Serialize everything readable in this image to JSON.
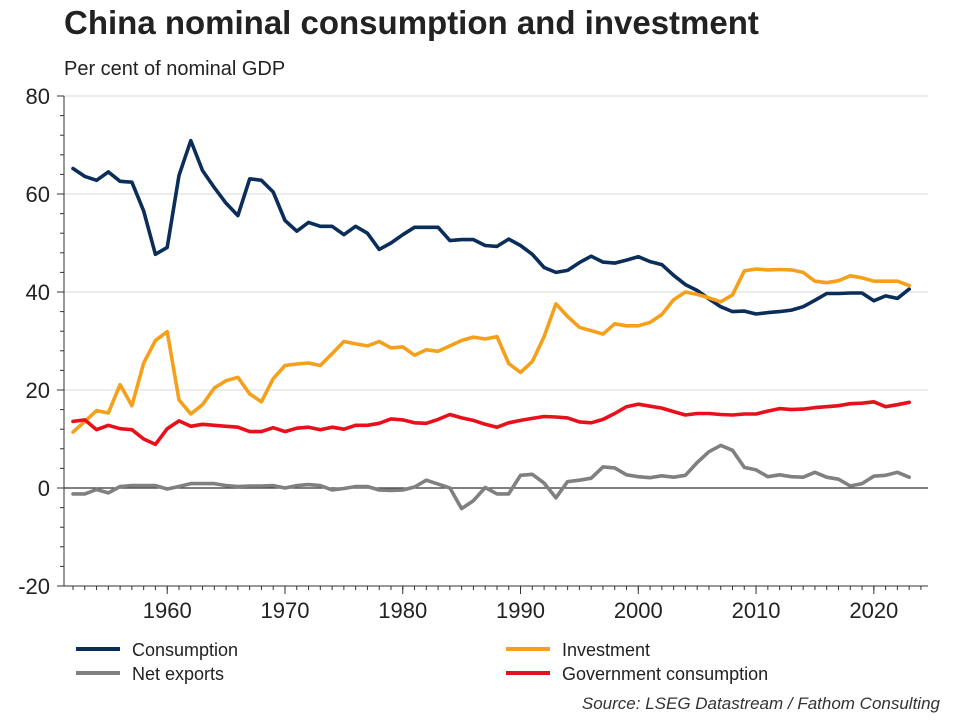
{
  "chart_data": {
    "type": "line",
    "title": "China nominal consumption and investment",
    "subtitle": "Per cent of nominal GDP",
    "ylim": [
      -20,
      80
    ],
    "yticks": [
      -20,
      0,
      20,
      40,
      60,
      80
    ],
    "xlim": [
      1952,
      2024
    ],
    "xticks": [
      1960,
      1970,
      1980,
      1990,
      2000,
      2010,
      2020
    ],
    "grid": "horizontal",
    "legend_placement": "bottom",
    "x": [
      1952,
      1953,
      1954,
      1955,
      1956,
      1957,
      1958,
      1959,
      1960,
      1961,
      1962,
      1963,
      1964,
      1965,
      1966,
      1967,
      1968,
      1969,
      1970,
      1971,
      1972,
      1973,
      1974,
      1975,
      1976,
      1977,
      1978,
      1979,
      1980,
      1981,
      1982,
      1983,
      1984,
      1985,
      1986,
      1987,
      1988,
      1989,
      1990,
      1991,
      1992,
      1993,
      1994,
      1995,
      1996,
      1997,
      1998,
      1999,
      2000,
      2001,
      2002,
      2003,
      2004,
      2005,
      2006,
      2007,
      2008,
      2009,
      2010,
      2011,
      2012,
      2013,
      2014,
      2015,
      2016,
      2017,
      2018,
      2019,
      2020,
      2021,
      2022,
      2023
    ],
    "series": [
      {
        "name": "Consumption",
        "color": "#0b2d5a",
        "values": [
          65.2,
          63.6,
          62.8,
          64.5,
          62.6,
          62.4,
          56.5,
          47.7,
          49.1,
          63.8,
          70.9,
          64.8,
          61.3,
          58.1,
          55.6,
          63.1,
          62.8,
          60.4,
          54.6,
          52.4,
          54.2,
          53.4,
          53.4,
          51.7,
          53.4,
          52.0,
          48.7,
          50.0,
          51.7,
          53.2,
          53.2,
          53.2,
          50.5,
          50.7,
          50.7,
          49.5,
          49.3,
          50.8,
          49.5,
          47.7,
          45.0,
          44.0,
          44.4,
          46.0,
          47.3,
          46.1,
          45.9,
          46.5,
          47.2,
          46.2,
          45.6,
          43.4,
          41.5,
          40.3,
          38.6,
          37.0,
          36.0,
          36.1,
          35.5,
          35.8,
          36.0,
          36.3,
          37.0,
          38.3,
          39.7,
          39.7,
          39.8,
          39.8,
          38.2,
          39.2,
          38.7,
          40.6
        ]
      },
      {
        "name": "Investment",
        "color": "#f5a01a",
        "values": [
          11.4,
          13.6,
          15.8,
          15.3,
          21.1,
          16.8,
          25.5,
          30.1,
          31.9,
          18.0,
          15.1,
          17.0,
          20.4,
          21.9,
          22.6,
          19.2,
          17.6,
          22.3,
          25.0,
          25.3,
          25.5,
          25.0,
          27.4,
          29.9,
          29.4,
          29.0,
          29.9,
          28.6,
          28.8,
          27.1,
          28.2,
          27.9,
          29.0,
          30.1,
          30.8,
          30.4,
          30.9,
          25.4,
          23.6,
          25.8,
          30.9,
          37.6,
          35.0,
          32.8,
          32.1,
          31.4,
          33.5,
          33.1,
          33.1,
          33.8,
          35.4,
          38.4,
          40.0,
          39.5,
          38.8,
          38.0,
          39.4,
          44.3,
          44.7,
          44.5,
          44.6,
          44.5,
          44.0,
          42.2,
          41.9,
          42.3,
          43.3,
          42.9,
          42.2,
          42.2,
          42.2,
          41.3
        ]
      },
      {
        "name": "Net exports",
        "color": "#808080",
        "values": [
          -1.2,
          -1.2,
          -0.3,
          -1.0,
          0.3,
          0.5,
          0.5,
          0.5,
          -0.2,
          0.3,
          0.9,
          0.9,
          0.9,
          0.5,
          0.3,
          0.4,
          0.4,
          0.5,
          0.0,
          0.5,
          0.7,
          0.5,
          -0.4,
          -0.1,
          0.3,
          0.3,
          -0.4,
          -0.5,
          -0.4,
          0.2,
          1.6,
          0.8,
          0.0,
          -4.2,
          -2.6,
          0.1,
          -1.2,
          -1.2,
          2.6,
          2.8,
          1.0,
          -2.0,
          1.3,
          1.6,
          2.0,
          4.3,
          4.1,
          2.7,
          2.3,
          2.1,
          2.5,
          2.2,
          2.6,
          5.2,
          7.4,
          8.7,
          7.7,
          4.2,
          3.7,
          2.3,
          2.7,
          2.3,
          2.2,
          3.2,
          2.2,
          1.8,
          0.4,
          0.9,
          2.4,
          2.6,
          3.2,
          2.2
        ]
      },
      {
        "name": "Government consumption",
        "color": "#e8101a",
        "values": [
          13.6,
          13.9,
          11.9,
          12.8,
          12.1,
          11.9,
          10.0,
          8.9,
          12.1,
          13.7,
          12.6,
          13.0,
          12.8,
          12.6,
          12.4,
          11.5,
          11.5,
          12.3,
          11.5,
          12.2,
          12.4,
          11.9,
          12.4,
          12.0,
          12.8,
          12.8,
          13.2,
          14.1,
          13.9,
          13.3,
          13.2,
          14.0,
          15.0,
          14.3,
          13.8,
          13.0,
          12.4,
          13.3,
          13.8,
          14.2,
          14.6,
          14.5,
          14.3,
          13.5,
          13.3,
          14.0,
          15.2,
          16.6,
          17.1,
          16.7,
          16.3,
          15.6,
          14.9,
          15.2,
          15.2,
          15.0,
          14.9,
          15.1,
          15.1,
          15.7,
          16.2,
          16.0,
          16.1,
          16.4,
          16.6,
          16.8,
          17.2,
          17.3,
          17.6,
          16.6,
          17.0,
          17.5
        ]
      }
    ],
    "source": "Source: LSEG Datastream / Fathom Consulting"
  }
}
